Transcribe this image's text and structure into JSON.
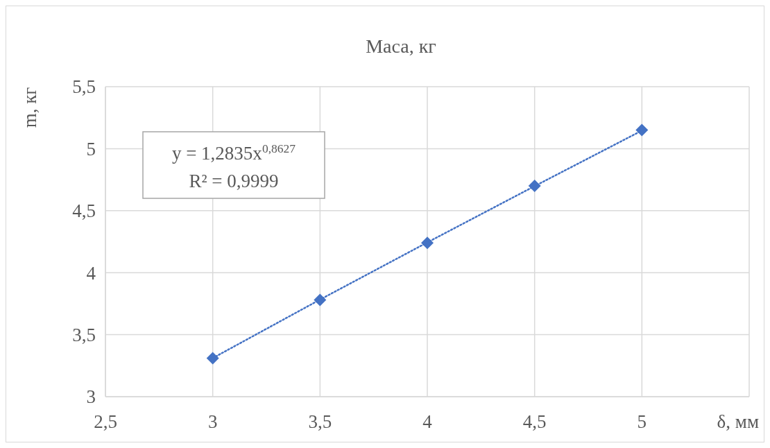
{
  "chart_data": {
    "type": "scatter",
    "title": "Маса, кг",
    "xlabel": "δ, мм",
    "ylabel": "m, кг",
    "annotations": [
      "y = 1,2835x$^{0,8627}$",
      "R² = 0,9999"
    ],
    "x": [
      3,
      3.5,
      4,
      4.5,
      5
    ],
    "series": [
      {
        "color": "#4472c4",
        "marker": "diamond",
        "values": [
          3.31,
          3.78,
          4.24,
          4.7,
          5.15
        ]
      },
      {
        "type": "line",
        "color": "#4472c4",
        "line_style": "dotted",
        "marker": "none",
        "x": [
          3,
          3.5,
          4,
          4.5,
          5
        ],
        "values": [
          3.311,
          3.783,
          4.244,
          4.698,
          5.146
        ]
      }
    ],
    "xlim": [
      2.5,
      5.5
    ],
    "xticks": [
      {
        "value": 2.5,
        "label": "2,5"
      },
      3,
      {
        "value": 3.5,
        "label": "3,5"
      },
      4,
      {
        "value": 4.5,
        "label": "4,5"
      },
      5,
      {
        "value": 5.5,
        "label": null
      }
    ],
    "ylim": [
      3,
      5.5
    ],
    "yticks": [
      3,
      {
        "value": 3.5,
        "label": "3,5"
      },
      4,
      {
        "value": 4.5,
        "label": "4,5"
      },
      5,
      {
        "value": 5.5,
        "label": "5,5"
      }
    ],
    "grid": true
  }
}
